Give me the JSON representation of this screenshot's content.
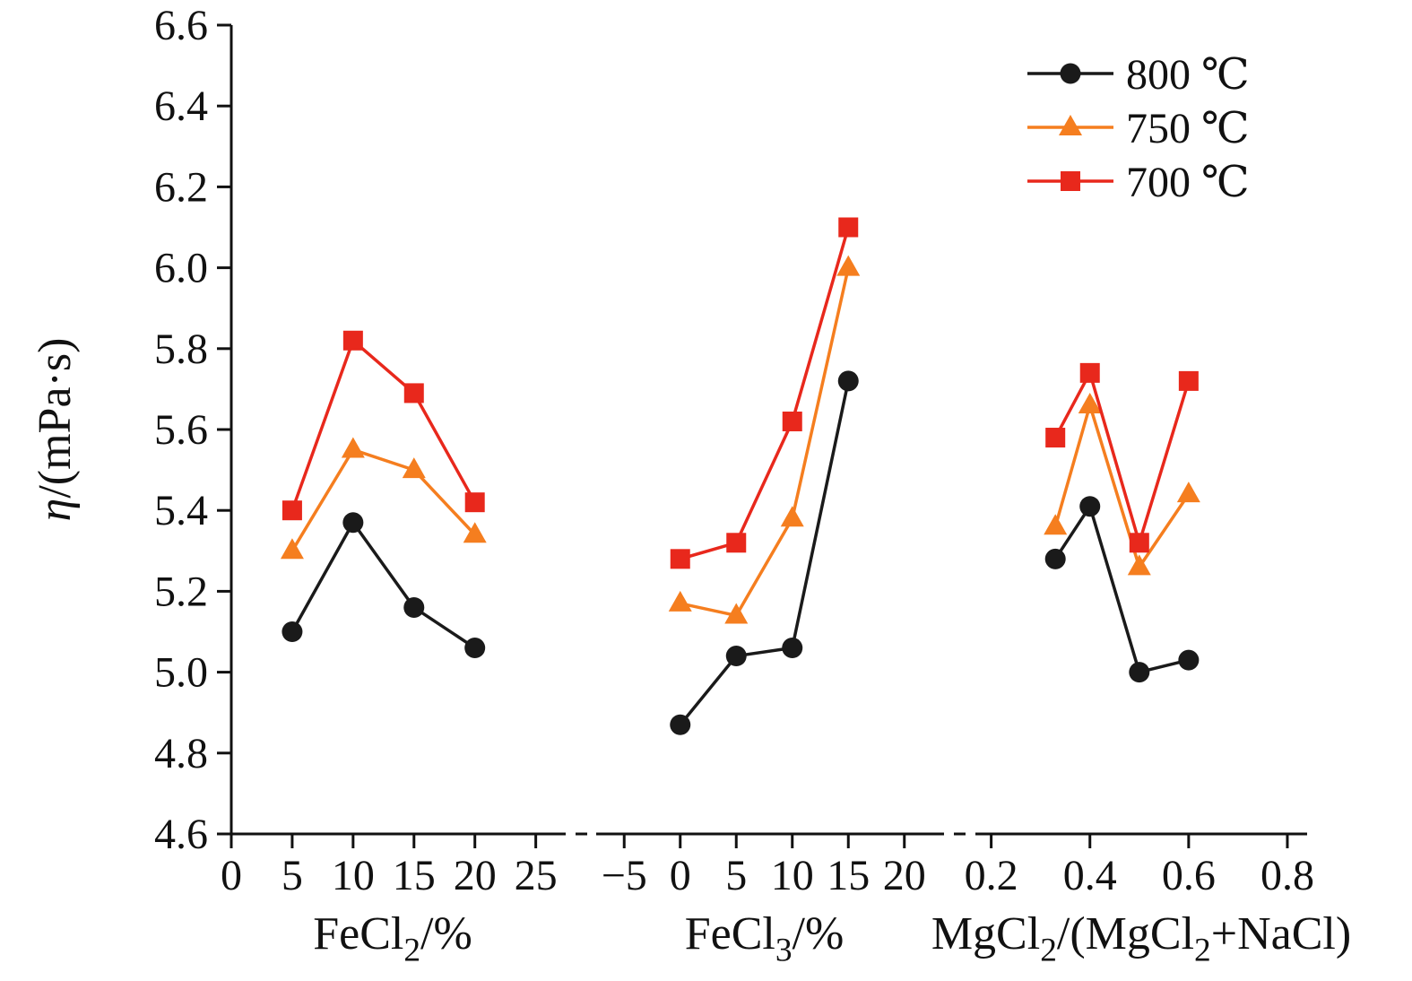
{
  "chart_data": {
    "type": "line",
    "title": "",
    "ylabel": {
      "text": "η/(mPa·s)",
      "segments": [
        {
          "t": "η",
          "italic": true
        },
        {
          "t": "/(mPa·s)"
        }
      ]
    },
    "ylim": [
      4.6,
      6.6
    ],
    "yticks": [
      4.6,
      4.8,
      5.0,
      5.2,
      5.4,
      5.6,
      5.8,
      6.0,
      6.2,
      6.4,
      6.6
    ],
    "ytick_labels": [
      "4.6",
      "4.8",
      "5.0",
      "5.2",
      "5.4",
      "5.6",
      "5.8",
      "6.0",
      "6.2",
      "6.4",
      "6.6"
    ],
    "grid": false,
    "legend_position": "top-right",
    "axis_color": "#111111",
    "series_styles": [
      {
        "name": "800 ℃",
        "color": "#1a1a1a",
        "marker": "circle"
      },
      {
        "name": "750 ℃",
        "color": "#f57e1f",
        "marker": "triangle"
      },
      {
        "name": "700 ℃",
        "color": "#e8281c",
        "marker": "square"
      }
    ],
    "panels": [
      {
        "xlabel": {
          "text": "FeCl2/%",
          "segments": [
            {
              "t": "FeCl"
            },
            {
              "t": "2",
              "sub": true
            },
            {
              "t": "/%"
            }
          ]
        },
        "xlim": [
          0,
          26.5
        ],
        "xticks": [
          0,
          5,
          10,
          15,
          20,
          25
        ],
        "xtick_labels": [
          "0",
          "5",
          "10",
          "15",
          "20",
          "25"
        ],
        "x": [
          5,
          10,
          15,
          20
        ],
        "series": [
          {
            "name": "800 ℃",
            "values": [
              5.1,
              5.37,
              5.16,
              5.06
            ]
          },
          {
            "name": "750 ℃",
            "values": [
              5.3,
              5.55,
              5.5,
              5.34
            ]
          },
          {
            "name": "700 ℃",
            "values": [
              5.4,
              5.82,
              5.69,
              5.42
            ]
          }
        ]
      },
      {
        "xlabel": {
          "text": "FeCl3/%",
          "segments": [
            {
              "t": "FeCl"
            },
            {
              "t": "3",
              "sub": true
            },
            {
              "t": "/%"
            }
          ]
        },
        "xlim": [
          -7.5,
          22.5
        ],
        "xticks": [
          -5,
          0,
          5,
          10,
          15,
          20
        ],
        "xtick_labels": [
          "−5",
          "0",
          "5",
          "10",
          "15",
          "20"
        ],
        "x": [
          0,
          5,
          10,
          15
        ],
        "series": [
          {
            "name": "800 ℃",
            "values": [
              4.87,
              5.04,
              5.06,
              5.72
            ]
          },
          {
            "name": "750 ℃",
            "values": [
              5.17,
              5.14,
              5.38,
              6.0
            ]
          },
          {
            "name": "700 ℃",
            "values": [
              5.28,
              5.32,
              5.62,
              6.1
            ]
          }
        ]
      },
      {
        "xlabel": {
          "text": "MgCl2/(MgCl2+NaCl)",
          "segments": [
            {
              "t": "MgCl"
            },
            {
              "t": "2",
              "sub": true
            },
            {
              "t": "/(MgCl"
            },
            {
              "t": "2",
              "sub": true
            },
            {
              "t": "+NaCl)"
            }
          ]
        },
        "xlim": [
          0.168,
          0.84
        ],
        "xticks": [
          0.2,
          0.4,
          0.6,
          0.8
        ],
        "xtick_labels": [
          "0.2",
          "0.4",
          "0.6",
          "0.8"
        ],
        "x": [
          0.33,
          0.4,
          0.5,
          0.6
        ],
        "series": [
          {
            "name": "800 ℃",
            "values": [
              5.28,
              5.41,
              5.0,
              5.03
            ]
          },
          {
            "name": "750 ℃",
            "values": [
              5.36,
              5.66,
              5.26,
              5.44
            ]
          },
          {
            "name": "700 ℃",
            "values": [
              5.58,
              5.74,
              5.32,
              5.72
            ]
          }
        ]
      }
    ],
    "legend": [
      {
        "label": "800 ℃"
      },
      {
        "label": "750 ℃"
      },
      {
        "label": "700 ℃"
      }
    ]
  }
}
